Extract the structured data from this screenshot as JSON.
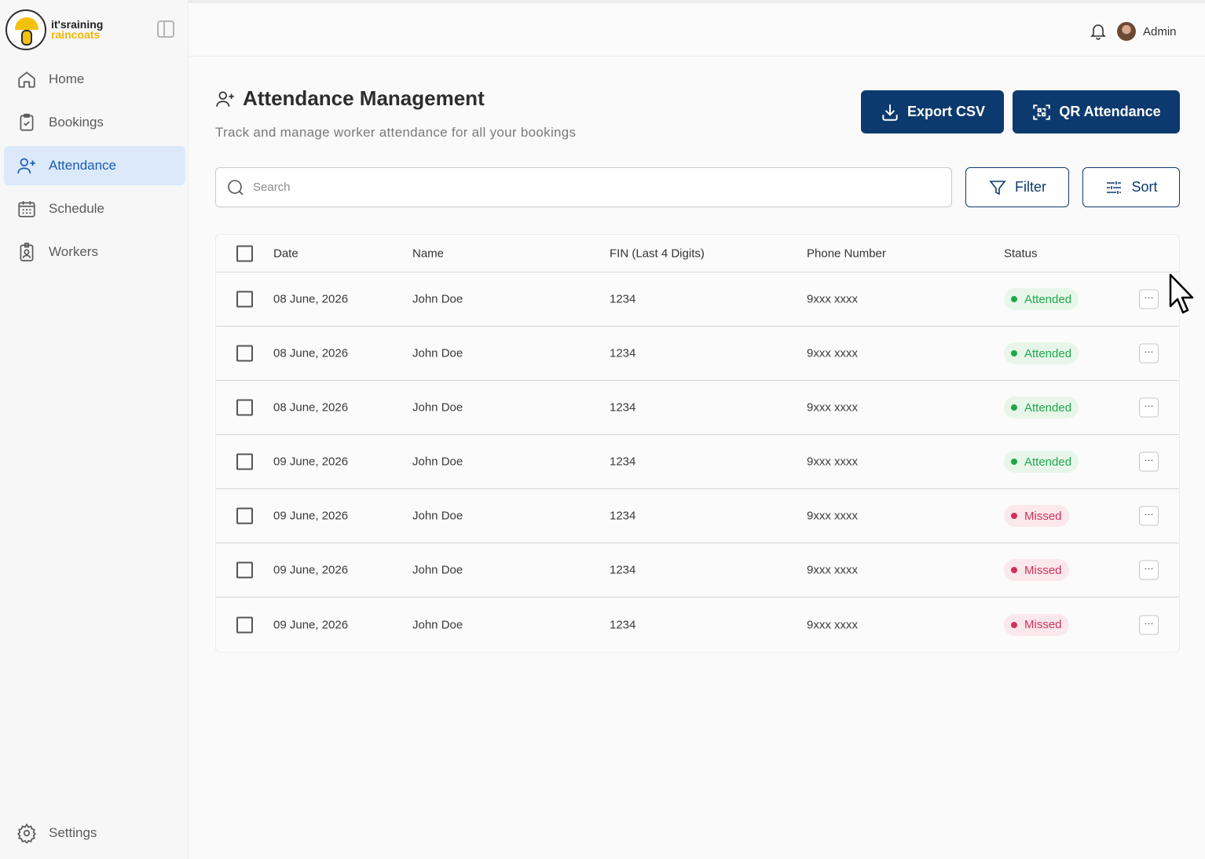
{
  "brand": {
    "line1": "it'sraining",
    "line2": "raincoats"
  },
  "sidebar": {
    "items": [
      {
        "label": "Home",
        "icon": "home-icon",
        "active": false
      },
      {
        "label": "Bookings",
        "icon": "clipboard-icon",
        "active": false
      },
      {
        "label": "Attendance",
        "icon": "user-plus-icon",
        "active": true
      },
      {
        "label": "Schedule",
        "icon": "calendar-icon",
        "active": false
      },
      {
        "label": "Workers",
        "icon": "badge-icon",
        "active": false
      }
    ],
    "settings_label": "Settings"
  },
  "topbar": {
    "user_name": "Admin"
  },
  "header": {
    "title": "Attendance Management",
    "subtitle": "Track and manage worker attendance for all your bookings"
  },
  "actions": {
    "export_label": "Export CSV",
    "qr_label": "QR Attendance",
    "filter_label": "Filter",
    "sort_label": "Sort"
  },
  "search": {
    "placeholder": "Search",
    "value": ""
  },
  "table": {
    "columns": [
      "Date",
      "Name",
      "FIN (Last 4 Digits)",
      "Phone Number",
      "Status"
    ],
    "rows": [
      {
        "date": "08 June, 2026",
        "name": "John Doe",
        "fin": "1234",
        "phone": "9xxx xxxx",
        "status": "Attended"
      },
      {
        "date": "08 June, 2026",
        "name": "John Doe",
        "fin": "1234",
        "phone": "9xxx xxxx",
        "status": "Attended"
      },
      {
        "date": "08 June, 2026",
        "name": "John Doe",
        "fin": "1234",
        "phone": "9xxx xxxx",
        "status": "Attended"
      },
      {
        "date": "09 June, 2026",
        "name": "John Doe",
        "fin": "1234",
        "phone": "9xxx xxxx",
        "status": "Attended"
      },
      {
        "date": "09 June, 2026",
        "name": "John Doe",
        "fin": "1234",
        "phone": "9xxx xxxx",
        "status": "Missed"
      },
      {
        "date": "09 June, 2026",
        "name": "John Doe",
        "fin": "1234",
        "phone": "9xxx xxxx",
        "status": "Missed"
      },
      {
        "date": "09 June, 2026",
        "name": "John Doe",
        "fin": "1234",
        "phone": "9xxx xxxx",
        "status": "Missed"
      }
    ],
    "more_label": "···"
  },
  "colors": {
    "primary": "#0d3a6e",
    "active_nav_bg": "#dbe9fb",
    "active_nav_text": "#1d5cb4",
    "attended": "#1fa84a",
    "missed": "#d1305c"
  }
}
